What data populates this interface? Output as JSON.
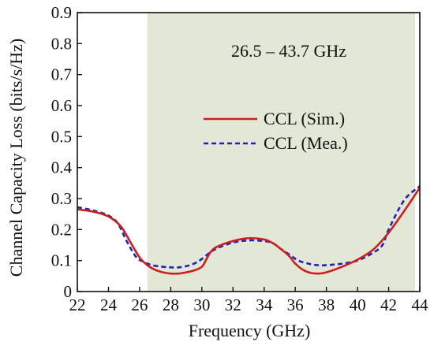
{
  "chart_data": {
    "type": "line",
    "xlabel": "Frequency (GHz)",
    "ylabel": "Channel Capacity Loss (bits/s/Hz)",
    "xlim": [
      22,
      44
    ],
    "ylim": [
      0,
      0.9
    ],
    "xticks": [
      "22",
      "24",
      "26",
      "28",
      "30",
      "32",
      "34",
      "36",
      "38",
      "40",
      "42",
      "44"
    ],
    "yticks": [
      "0",
      "0.1",
      "0.2",
      "0.3",
      "0.4",
      "0.5",
      "0.6",
      "0.7",
      "0.8",
      "0.9"
    ],
    "annotation": "26.5 – 43.7 GHz",
    "shaded_band": [
      26.5,
      43.7
    ],
    "legend_position": "upper-right",
    "grid": false,
    "series": [
      {
        "name": "CCL (Sim.)",
        "color": "#cc1f1f",
        "style": "solid",
        "x": [
          22,
          23,
          24,
          24.8,
          25.4,
          26,
          26.5,
          27,
          27.5,
          28,
          28.5,
          29,
          29.5,
          30,
          30.3,
          30.6,
          31,
          32,
          33,
          34,
          34.6,
          35,
          35.6,
          36,
          36.5,
          37,
          37.5,
          38,
          39,
          40,
          41,
          42,
          43,
          44
        ],
        "y": [
          0.265,
          0.258,
          0.242,
          0.21,
          0.16,
          0.11,
          0.085,
          0.07,
          0.062,
          0.058,
          0.058,
          0.062,
          0.068,
          0.08,
          0.105,
          0.13,
          0.145,
          0.163,
          0.172,
          0.168,
          0.155,
          0.14,
          0.115,
          0.09,
          0.07,
          0.06,
          0.058,
          0.062,
          0.08,
          0.103,
          0.135,
          0.19,
          0.26,
          0.335
        ]
      },
      {
        "name": "CCL (Mea.)",
        "color": "#2222bb",
        "style": "dashed",
        "x": [
          22,
          23,
          24,
          24.6,
          25.2,
          25.8,
          26.3,
          26.8,
          27.5,
          28,
          28.5,
          29,
          29.5,
          30,
          30.5,
          31,
          32,
          33,
          34,
          34.6,
          35,
          35.6,
          36.2,
          37,
          37.5,
          38,
          39,
          40,
          41,
          41.6,
          42,
          43,
          44
        ],
        "y": [
          0.272,
          0.262,
          0.245,
          0.22,
          0.16,
          0.11,
          0.095,
          0.085,
          0.08,
          0.078,
          0.078,
          0.082,
          0.09,
          0.105,
          0.125,
          0.14,
          0.158,
          0.165,
          0.163,
          0.155,
          0.14,
          0.12,
          0.1,
          0.088,
          0.085,
          0.085,
          0.09,
          0.1,
          0.125,
          0.15,
          0.2,
          0.295,
          0.34
        ]
      }
    ]
  }
}
